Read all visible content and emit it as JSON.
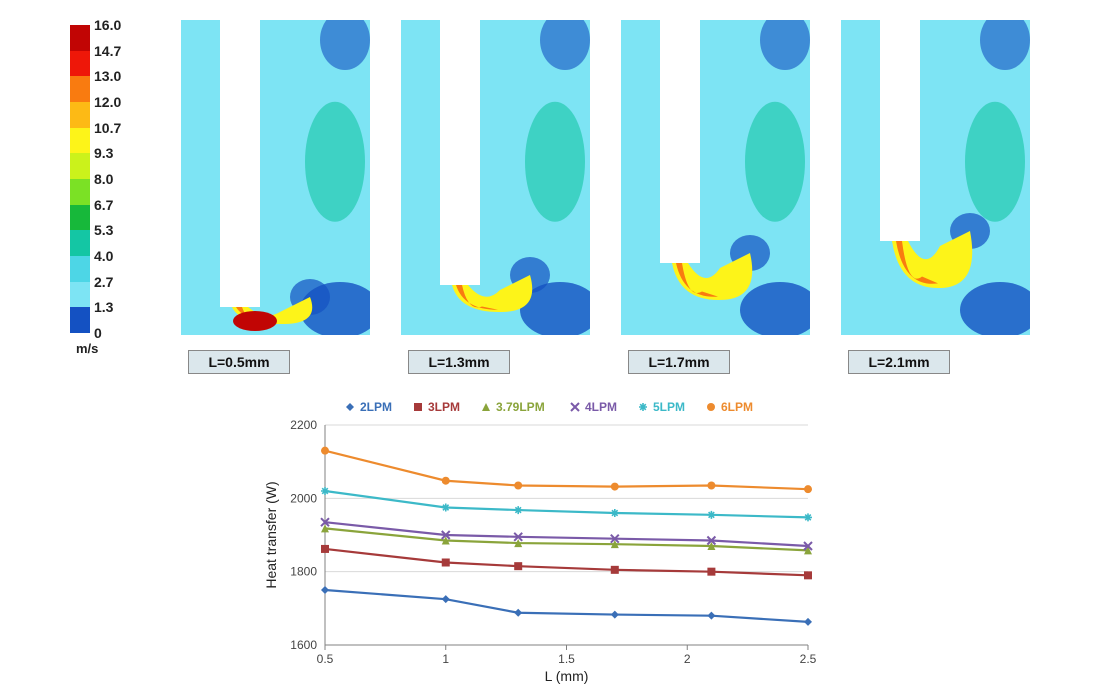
{
  "colorbar": {
    "unit": "m/s",
    "ticks": [
      "16.0",
      "14.7",
      "13.0",
      "12.0",
      "10.7",
      "9.3",
      "8.0",
      "6.7",
      "5.3",
      "4.0",
      "2.7",
      "1.3",
      "0"
    ],
    "tick_fontsize": 14,
    "tick_fontweight": "bold",
    "colors": [
      "#c10504",
      "#ee1709",
      "#f97b10",
      "#fdba15",
      "#fdf419",
      "#cbf21b",
      "#7be125",
      "#17b83a",
      "#14c6a4",
      "#4dd6e6",
      "#7de4f4",
      "#1451c2",
      "#0c1f8a"
    ]
  },
  "panels": [
    {
      "label": "L=0.5mm"
    },
    {
      "label": "L=1.3mm"
    },
    {
      "label": "L=1.7mm"
    },
    {
      "label": "L=2.1mm"
    }
  ],
  "panel_label_bg": "#dbe7ec",
  "chart": {
    "type": "line",
    "xlabel": "L (mm)",
    "ylabel": "Heat transfer (W)",
    "label_fontsize": 14,
    "tick_fontsize": 12,
    "xlim": [
      0.5,
      2.5
    ],
    "ylim": [
      1600,
      2200
    ],
    "xtick_step": 0.5,
    "ytick_step": 200,
    "xticks": [
      "0.5",
      "1",
      "1.5",
      "2",
      "2.5"
    ],
    "yticks": [
      "1600",
      "1800",
      "2000",
      "2200"
    ],
    "grid_color": "#d9d9d9",
    "axis_color": "#808080",
    "background_color": "#ffffff",
    "legend_position": "top",
    "x_values": [
      0.5,
      1.0,
      1.3,
      1.7,
      2.1,
      2.5
    ],
    "series": [
      {
        "name": "2LPM",
        "color": "#3a6fb7",
        "marker": "diamond",
        "values": [
          1750,
          1725,
          1688,
          1683,
          1680,
          1663
        ]
      },
      {
        "name": "3LPM",
        "color": "#a63a3a",
        "marker": "square",
        "values": [
          1862,
          1825,
          1815,
          1805,
          1800,
          1790
        ]
      },
      {
        "name": "3.79LPM",
        "color": "#8aa43b",
        "marker": "triangle",
        "values": [
          1918,
          1885,
          1878,
          1875,
          1870,
          1858
        ]
      },
      {
        "name": "4LPM",
        "color": "#7a5aa8",
        "marker": "x",
        "values": [
          1935,
          1900,
          1895,
          1890,
          1885,
          1870
        ]
      },
      {
        "name": "5LPM",
        "color": "#3cb9c8",
        "marker": "star",
        "values": [
          2020,
          1975,
          1968,
          1960,
          1955,
          1948
        ]
      },
      {
        "name": "6LPM",
        "color": "#ed8b2e",
        "marker": "circle",
        "values": [
          2130,
          2048,
          2035,
          2032,
          2035,
          2025
        ]
      }
    ],
    "line_width": 2.2,
    "marker_size": 8
  }
}
